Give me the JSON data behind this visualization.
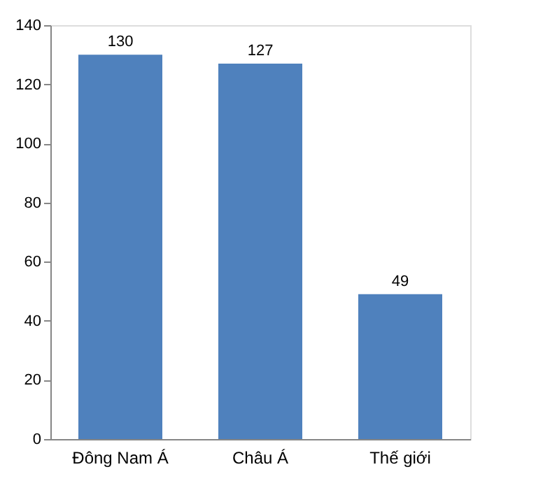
{
  "chart_data": {
    "type": "bar",
    "categories": [
      "Đông Nam Á",
      "Châu Á",
      "Thế giới"
    ],
    "values": [
      130,
      127,
      49
    ],
    "color": "#4f81bd",
    "ylim": [
      0,
      140
    ],
    "yticks": [
      0,
      20,
      40,
      60,
      80,
      100,
      120,
      140
    ],
    "grid": false,
    "data_labels": true
  }
}
